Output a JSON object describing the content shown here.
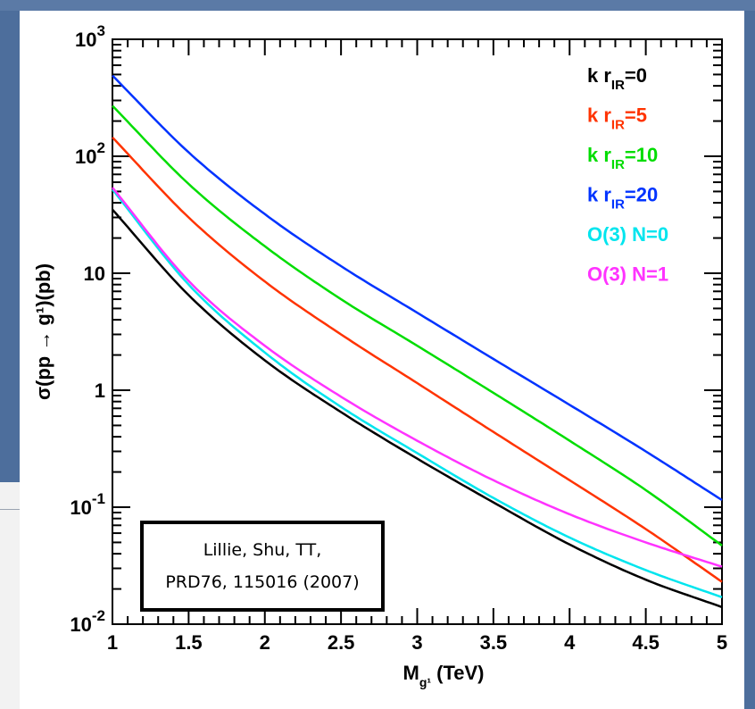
{
  "chart_data": {
    "type": "line",
    "title": "",
    "xlabel": "M",
    "xlabel_sub": "g¹",
    "xlabel_unit": "(TeV)",
    "ylabel": "σ(pp → g¹)(pb)",
    "xlim": [
      1,
      5
    ],
    "ylim": [
      0.01,
      1000
    ],
    "yscale": "log",
    "x_ticks": [
      {
        "value": 1,
        "label": "1"
      },
      {
        "value": 1.5,
        "label": "1.5"
      },
      {
        "value": 2,
        "label": "2"
      },
      {
        "value": 2.5,
        "label": "2.5"
      },
      {
        "value": 3,
        "label": "3"
      },
      {
        "value": 3.5,
        "label": "3.5"
      },
      {
        "value": 4,
        "label": "4"
      },
      {
        "value": 4.5,
        "label": "4.5"
      },
      {
        "value": 5,
        "label": "5"
      }
    ],
    "y_ticks": [
      {
        "value": 0.01,
        "base": "10",
        "exp": "-2"
      },
      {
        "value": 0.1,
        "base": "10",
        "exp": "-1"
      },
      {
        "value": 1,
        "base": "1",
        "exp": ""
      },
      {
        "value": 10,
        "base": "10",
        "exp": ""
      },
      {
        "value": 100,
        "base": "10",
        "exp": "2"
      },
      {
        "value": 1000,
        "base": "10",
        "exp": "3"
      }
    ],
    "grid": false,
    "legend_position": "top-right",
    "x": [
      1,
      1.5,
      2,
      2.5,
      3,
      3.5,
      4,
      4.5,
      5
    ],
    "series": [
      {
        "name": "k r_IR=0",
        "label_main": "k r",
        "label_sub": "IR",
        "label_tail": "=0",
        "color": "#000000",
        "values": [
          35,
          6.5,
          1.8,
          0.65,
          0.26,
          0.11,
          0.048,
          0.024,
          0.014
        ]
      },
      {
        "name": "k r_IR=5",
        "label_main": "k r",
        "label_sub": "IR",
        "label_tail": "=5",
        "color": "#ff3300",
        "values": [
          145,
          30,
          8.5,
          3.0,
          1.15,
          0.44,
          0.17,
          0.065,
          0.023
        ]
      },
      {
        "name": "k r_IR=10",
        "label_main": "k r",
        "label_sub": "IR",
        "label_tail": "=10",
        "color": "#00dd00",
        "values": [
          270,
          58,
          17,
          6.0,
          2.4,
          0.95,
          0.37,
          0.14,
          0.047
        ]
      },
      {
        "name": "k r_IR=20",
        "label_main": "k r",
        "label_sub": "IR",
        "label_tail": "=20",
        "color": "#0033ff",
        "values": [
          490,
          108,
          32,
          11.5,
          4.6,
          1.85,
          0.75,
          0.3,
          0.115
        ]
      },
      {
        "name": "O(3) N=0",
        "label_main": "O(3) N=0",
        "label_sub": "",
        "label_tail": "",
        "color": "#00e5ee",
        "values": [
          52,
          8.0,
          2.1,
          0.72,
          0.29,
          0.12,
          0.055,
          0.029,
          0.017
        ]
      },
      {
        "name": "O(3) N=1",
        "label_main": "O(3) N=1",
        "label_sub": "",
        "label_tail": "",
        "color": "#ff33ff",
        "values": [
          54,
          8.6,
          2.4,
          0.88,
          0.37,
          0.17,
          0.087,
          0.05,
          0.031
        ]
      }
    ]
  },
  "annotation": {
    "line1": "Lillie, Shu, TT,",
    "line2": "PRD76, 115016 (2007)"
  }
}
